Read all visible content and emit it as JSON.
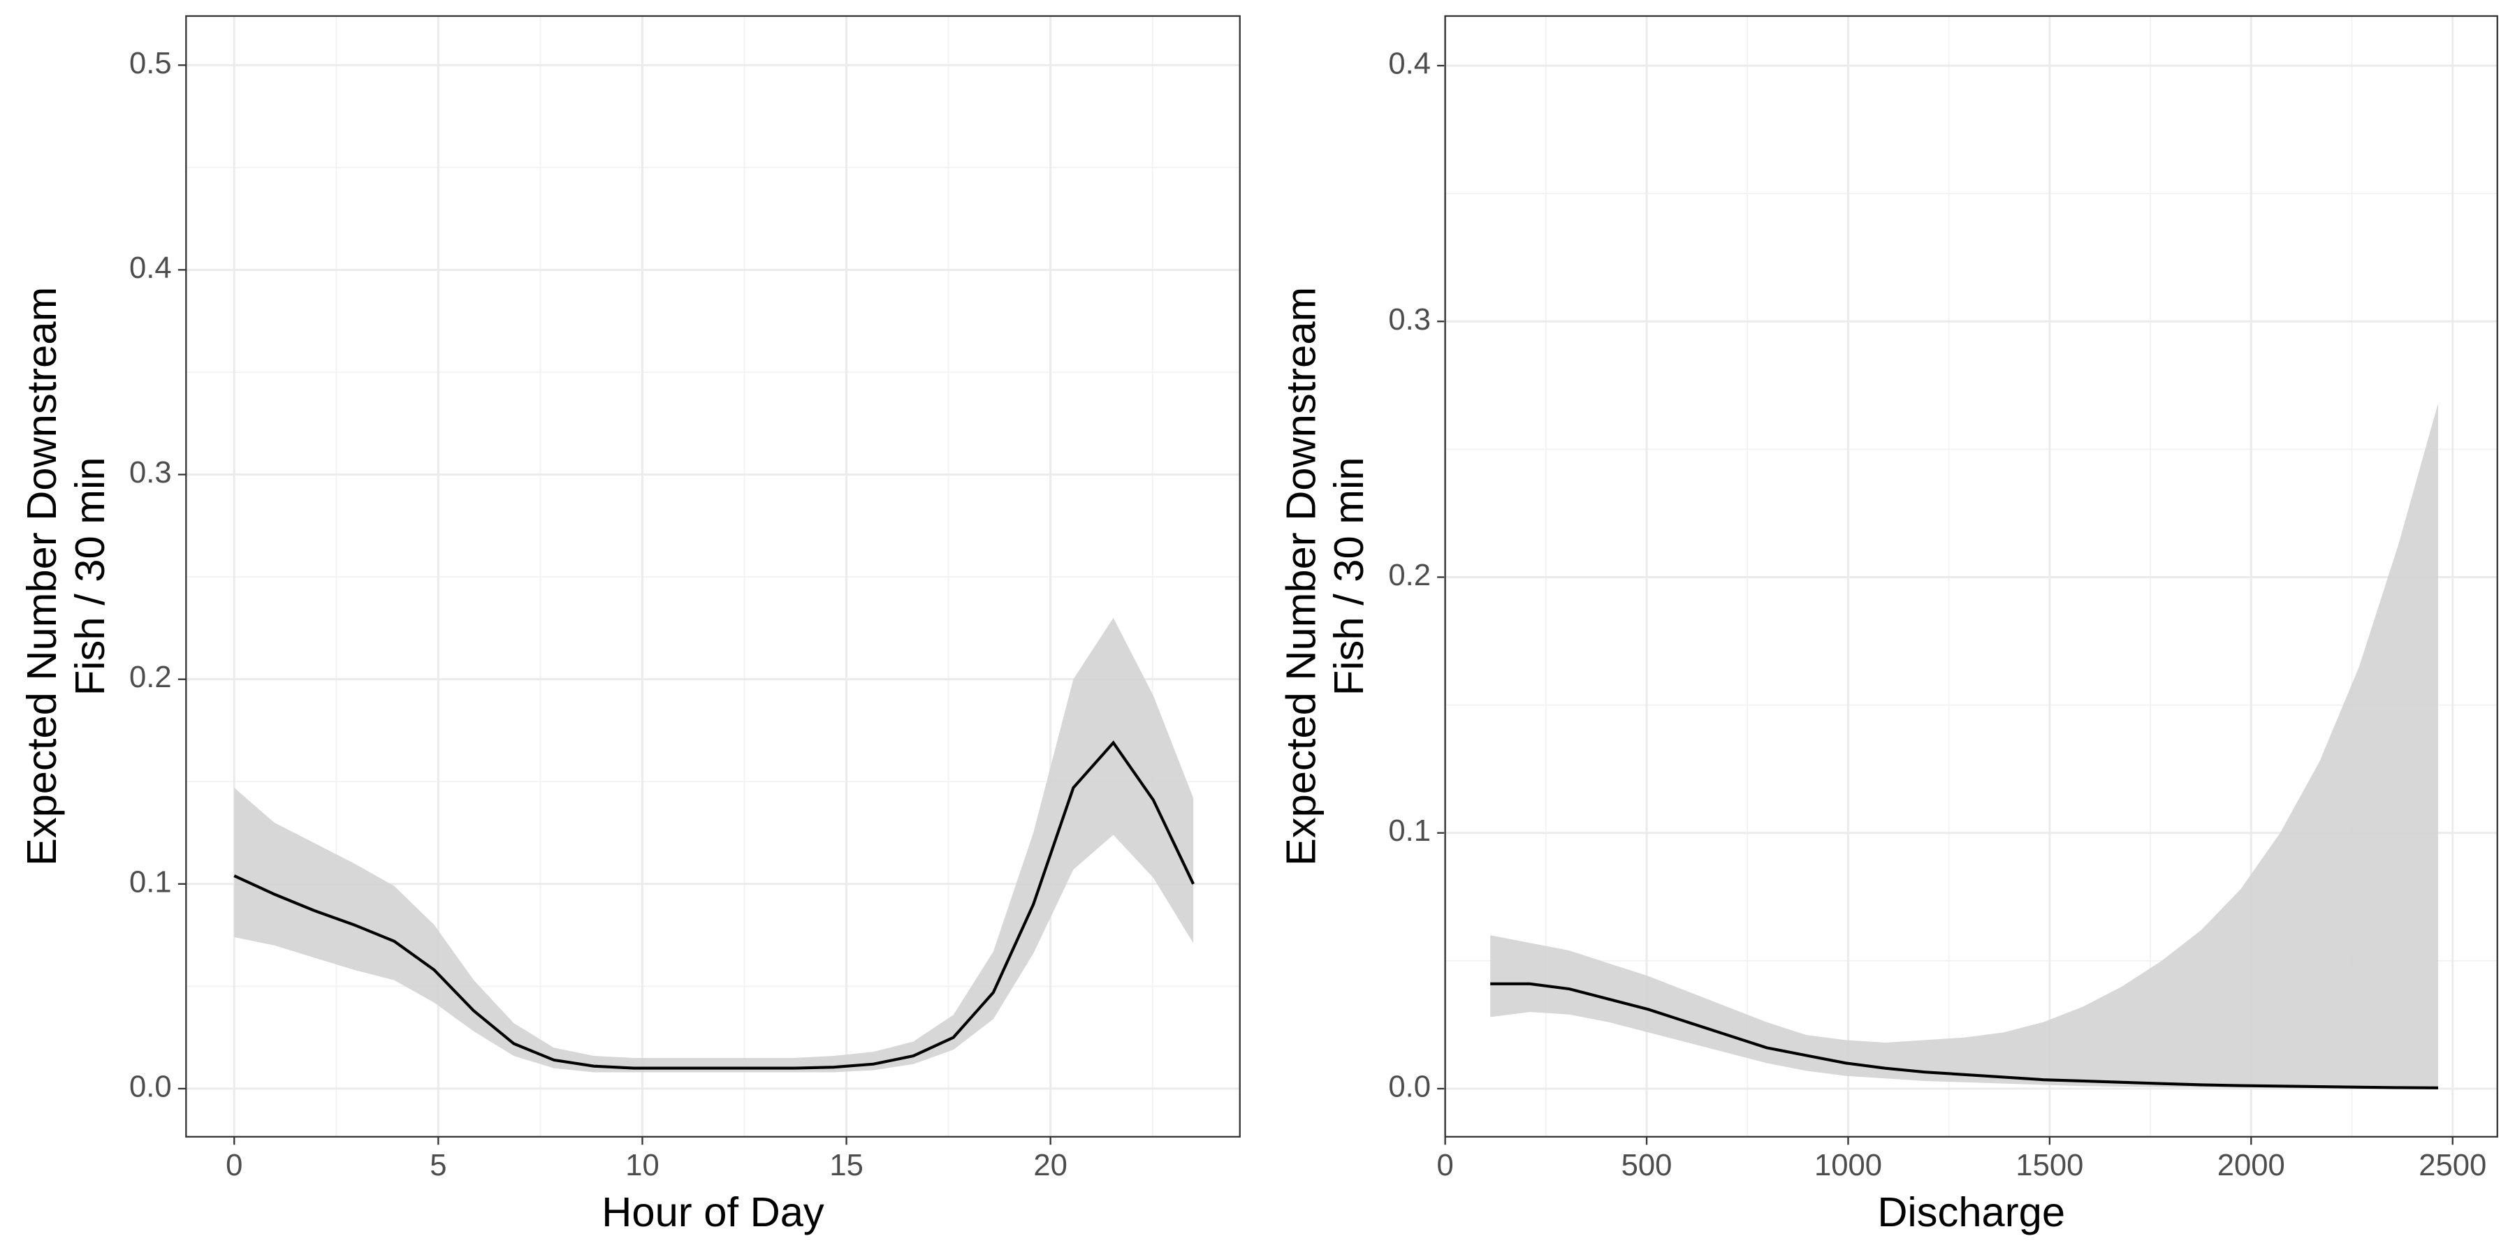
{
  "chart_data": [
    {
      "type": "line",
      "ylabel": [
        "Expected Number Downstream",
        "Fish / 30 min"
      ],
      "xlabel": "Hour of Day",
      "x": [
        0,
        0.98,
        1.96,
        2.94,
        3.92,
        4.9,
        5.87,
        6.85,
        7.83,
        8.81,
        9.79,
        10.77,
        11.75,
        12.73,
        13.71,
        14.69,
        15.66,
        16.64,
        17.62,
        18.6,
        19.58,
        20.56,
        21.54,
        22.52,
        23.5
      ],
      "line": {
        "color": "#000000",
        "values": [
          0.104,
          0.095,
          0.087,
          0.08,
          0.072,
          0.058,
          0.038,
          0.022,
          0.014,
          0.011,
          0.01,
          0.01,
          0.01,
          0.01,
          0.01,
          0.0105,
          0.012,
          0.016,
          0.025,
          0.047,
          0.09,
          0.147,
          0.169,
          0.141,
          0.1
        ]
      },
      "band": {
        "color": "#d3d3d3",
        "upper": [
          0.147,
          0.13,
          0.12,
          0.11,
          0.099,
          0.08,
          0.053,
          0.032,
          0.02,
          0.016,
          0.015,
          0.015,
          0.015,
          0.015,
          0.015,
          0.016,
          0.018,
          0.023,
          0.036,
          0.067,
          0.125,
          0.2,
          0.23,
          0.192,
          0.142
        ],
        "lower": [
          0.074,
          0.07,
          0.064,
          0.058,
          0.053,
          0.042,
          0.028,
          0.016,
          0.01,
          0.008,
          0.008,
          0.008,
          0.008,
          0.008,
          0.008,
          0.008,
          0.009,
          0.012,
          0.019,
          0.034,
          0.066,
          0.107,
          0.124,
          0.103,
          0.071
        ]
      },
      "xlim": [
        -1.18,
        24.64
      ],
      "ylim": [
        -0.0235,
        0.524
      ],
      "xticks": [
        0,
        5,
        10,
        15,
        20
      ],
      "yticks": [
        {
          "value": 0,
          "label": "0.0"
        },
        {
          "value": 0.1,
          "label": "0.1"
        },
        {
          "value": 0.2,
          "label": "0.2"
        },
        {
          "value": 0.3,
          "label": "0.3"
        },
        {
          "value": 0.4,
          "label": "0.4"
        },
        {
          "value": 0.5,
          "label": "0.5"
        }
      ],
      "grid": true
    },
    {
      "type": "line",
      "ylabel": [
        "Expected Number Downstream",
        "Fish / 30 min"
      ],
      "xlabel": "Discharge",
      "x": [
        112,
        210,
        308,
        406,
        504,
        602,
        700,
        798,
        896,
        994,
        1092,
        1190,
        1288,
        1386,
        1484,
        1582,
        1680,
        1778,
        1876,
        1974,
        2072,
        2170,
        2268,
        2366,
        2464
      ],
      "line": {
        "color": "#000000",
        "values": [
          0.041,
          0.041,
          0.039,
          0.035,
          0.031,
          0.026,
          0.021,
          0.016,
          0.013,
          0.01,
          0.008,
          0.0065,
          0.0055,
          0.0045,
          0.0035,
          0.003,
          0.0025,
          0.002,
          0.0015,
          0.0012,
          0.001,
          0.0008,
          0.0006,
          0.0004,
          0.0003
        ]
      },
      "band": {
        "color": "#d3d3d3",
        "upper": [
          0.06,
          0.057,
          0.054,
          0.049,
          0.044,
          0.038,
          0.032,
          0.026,
          0.021,
          0.019,
          0.018,
          0.019,
          0.02,
          0.022,
          0.026,
          0.032,
          0.04,
          0.05,
          0.062,
          0.078,
          0.1,
          0.128,
          0.165,
          0.213,
          0.268
        ],
        "lower": [
          0.028,
          0.03,
          0.029,
          0.026,
          0.022,
          0.018,
          0.014,
          0.01,
          0.007,
          0.005,
          0.004,
          0.003,
          0.0025,
          0.002,
          0.0015,
          0.001,
          0.0008,
          0.0006,
          0.0005,
          0.0004,
          0.0003,
          0.0002,
          0.0001,
          0.0001,
          0
        ]
      },
      "xlim": [
        0,
        2611
      ],
      "ylim": [
        -0.0188,
        0.4194
      ],
      "xticks": [
        0,
        500,
        1000,
        1500,
        2000,
        2500
      ],
      "yticks": [
        {
          "value": 0,
          "label": "0.0"
        },
        {
          "value": 0.1,
          "label": "0.1"
        },
        {
          "value": 0.2,
          "label": "0.2"
        },
        {
          "value": 0.3,
          "label": "0.3"
        },
        {
          "value": 0.4,
          "label": "0.4"
        }
      ],
      "grid": true
    }
  ]
}
